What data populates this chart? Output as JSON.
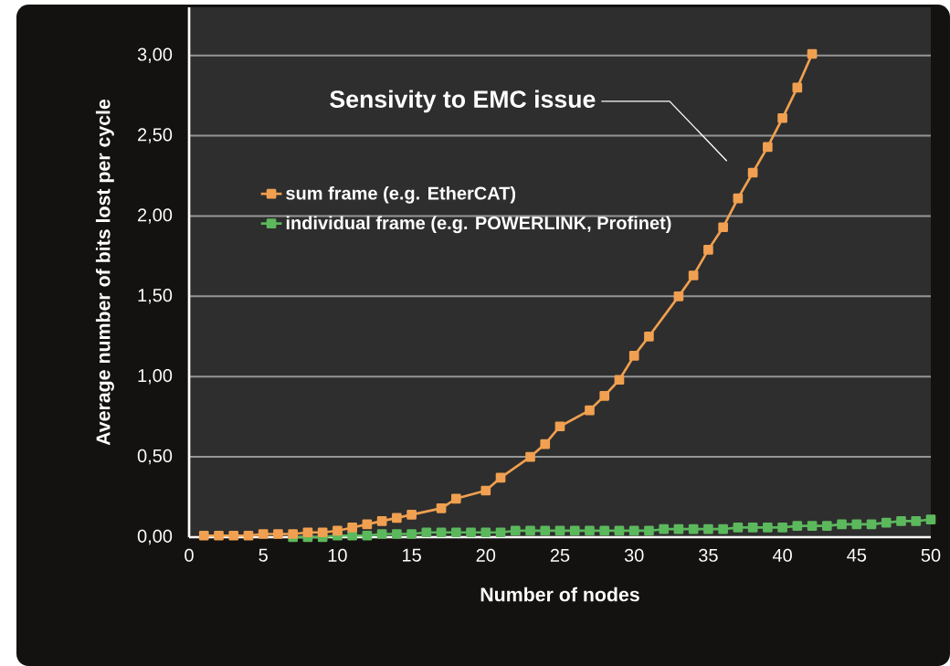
{
  "chart_data": {
    "type": "line",
    "xlabel": "Number of nodes",
    "ylabel": "Average number of bits lost per cycle",
    "xlim": [
      0,
      50
    ],
    "ylim": [
      0,
      3.3
    ],
    "xticks": [
      0,
      5,
      10,
      15,
      20,
      25,
      30,
      35,
      40,
      45,
      50
    ],
    "yticks": [
      {
        "value": 0,
        "label": "0,00"
      },
      {
        "value": 0.5,
        "label": "0,50"
      },
      {
        "value": 1,
        "label": "1,00"
      },
      {
        "value": 1.5,
        "label": "1,50"
      },
      {
        "value": 2,
        "label": "2,00"
      },
      {
        "value": 2.5,
        "label": "2,50"
      },
      {
        "value": 3,
        "label": "3,00"
      }
    ],
    "grid": "y",
    "legend": "left",
    "marker": "square",
    "line_style": "solid",
    "series": [
      {
        "name": "sum frame (e.g. EtherCAT)",
        "color": "#f0a050",
        "x": [
          1,
          2,
          3,
          4,
          5,
          6,
          7,
          8,
          9,
          10,
          11,
          12,
          13,
          14,
          15,
          17,
          18,
          20,
          21,
          23,
          24,
          25,
          27,
          28,
          29,
          30,
          31,
          33,
          34,
          35,
          36,
          37,
          38,
          39,
          40,
          41,
          42
        ],
        "values": [
          0.01,
          0.01,
          0.01,
          0.01,
          0.02,
          0.02,
          0.02,
          0.03,
          0.03,
          0.04,
          0.06,
          0.08,
          0.1,
          0.12,
          0.14,
          0.18,
          0.24,
          0.29,
          0.37,
          0.5,
          0.58,
          0.69,
          0.79,
          0.88,
          0.98,
          1.13,
          1.25,
          1.5,
          1.63,
          1.79,
          1.93,
          2.11,
          2.27,
          2.43,
          2.61,
          2.8,
          3.01
        ]
      },
      {
        "name": "individual frame (e.g. POWERLINK, Profinet)",
        "color": "#5cb85c",
        "x": [
          7,
          8,
          9,
          10,
          11,
          12,
          13,
          14,
          15,
          16,
          17,
          18,
          19,
          20,
          21,
          22,
          23,
          24,
          25,
          26,
          27,
          28,
          29,
          30,
          31,
          32,
          33,
          34,
          35,
          36,
          37,
          38,
          39,
          40,
          41,
          42,
          43,
          44,
          45,
          46,
          47,
          48,
          49,
          50
        ],
        "values": [
          0.0,
          0.0,
          0.0,
          0.01,
          0.01,
          0.01,
          0.02,
          0.02,
          0.02,
          0.03,
          0.03,
          0.03,
          0.03,
          0.03,
          0.03,
          0.04,
          0.04,
          0.04,
          0.04,
          0.04,
          0.04,
          0.04,
          0.04,
          0.04,
          0.04,
          0.05,
          0.05,
          0.05,
          0.05,
          0.05,
          0.06,
          0.06,
          0.06,
          0.06,
          0.07,
          0.07,
          0.07,
          0.08,
          0.08,
          0.08,
          0.09,
          0.1,
          0.1,
          0.11
        ]
      }
    ],
    "annotations": [
      "Sensivity to EMC issue"
    ]
  }
}
